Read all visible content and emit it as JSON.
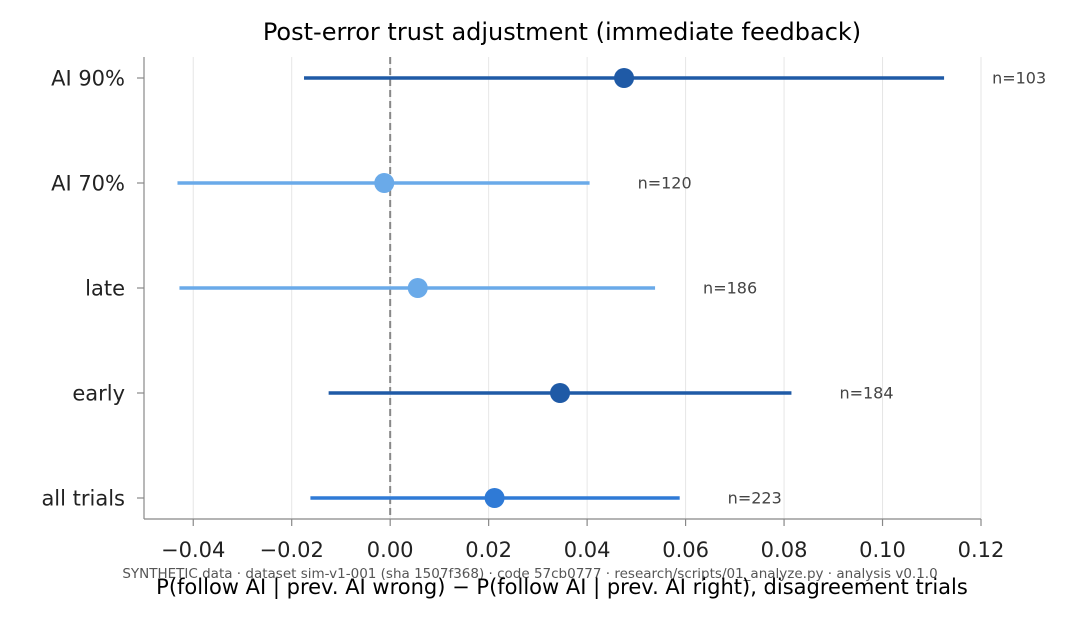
{
  "chart_data": {
    "type": "forest",
    "title": "Post-error trust adjustment (immediate feedback)",
    "xlabel": "P(follow AI | prev. AI wrong) − P(follow AI | prev. AI right), disagreement trials",
    "ylabel": "",
    "footnote": "SYNTHETIC data · dataset sim-v1-001 (sha 1507f368) · code 57cb0777 · research/scripts/01_analyze.py · analysis v0.1.0",
    "xlim": [
      -0.05,
      0.12
    ],
    "xticks": [
      -0.04,
      -0.02,
      0.0,
      0.02,
      0.04,
      0.06,
      0.08,
      0.1,
      0.12
    ],
    "xtick_labels": [
      "−0.04",
      "−0.02",
      "0.00",
      "0.02",
      "0.04",
      "0.06",
      "0.08",
      "0.10",
      "0.12"
    ],
    "grid": "x",
    "reference_line": 0,
    "rows": [
      {
        "label": "AI 90%",
        "estimate": 0.0475,
        "ci_low": -0.0175,
        "ci_high": 0.1125,
        "n_label": "n=103",
        "color": "#1f5aa6"
      },
      {
        "label": "AI 70%",
        "estimate": -0.0012,
        "ci_low": -0.0432,
        "ci_high": 0.0405,
        "n_label": "n=120",
        "color": "#6aaae9"
      },
      {
        "label": "late",
        "estimate": 0.0056,
        "ci_low": -0.0428,
        "ci_high": 0.0538,
        "n_label": "n=186",
        "color": "#6aaae9"
      },
      {
        "label": "early",
        "estimate": 0.0345,
        "ci_low": -0.0125,
        "ci_high": 0.0815,
        "n_label": "n=184",
        "color": "#1f5aa6"
      },
      {
        "label": "all trials",
        "estimate": 0.0212,
        "ci_low": -0.0162,
        "ci_high": 0.0588,
        "n_label": "n=223",
        "color": "#2f7ad6"
      }
    ],
    "colors": {
      "axis": "#888888",
      "grid": "#e6e6e6",
      "reference": "#888888",
      "text": "#222222",
      "n_text": "#444444",
      "footnote": "#555555"
    }
  }
}
